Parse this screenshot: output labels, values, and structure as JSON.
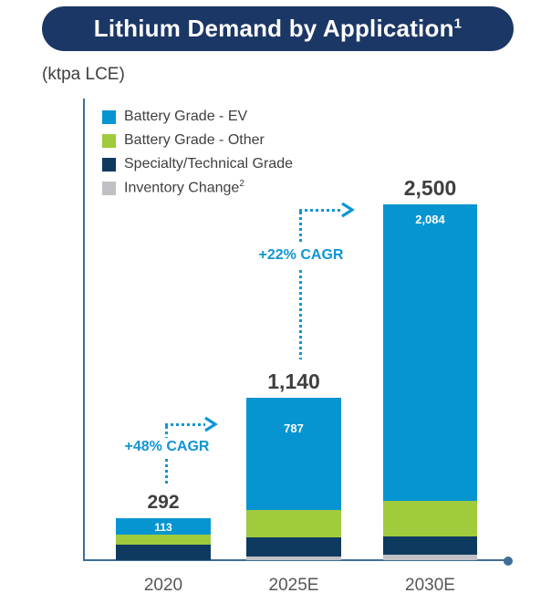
{
  "header": {
    "title": "Lithium Demand by Application",
    "superscript": "1"
  },
  "units_label": "(ktpa LCE)",
  "colors": {
    "banner": "#1b3765",
    "axis": "#3e6e96",
    "annotation_blue": "#1096d5",
    "total_label": "#3f3f3f",
    "tick_label": "#575757"
  },
  "chart_data": {
    "type": "bar",
    "stacked": true,
    "title": "Lithium Demand by Application",
    "ylabel": "(ktpa LCE)",
    "grid": false,
    "legend_position": "top-left",
    "categories": [
      "2020",
      "2025E",
      "2030E"
    ],
    "totals": [
      "292",
      "1,140",
      "2,500"
    ],
    "totals_values": [
      292,
      1140,
      2500
    ],
    "series": [
      {
        "name": "Battery Grade - EV",
        "color": "#0795d2",
        "values": [
          113,
          787,
          2084
        ]
      },
      {
        "name": "Battery Grade - Other",
        "color": "#a0cb3d",
        "values": [
          67,
          190,
          250
        ]
      },
      {
        "name": "Specialty/Technical Grade",
        "color": "#0e3a60",
        "values": [
          112,
          135,
          130
        ]
      },
      {
        "name": "Inventory Change",
        "superscript": "2",
        "color": "#c1c1c5",
        "values": [
          0,
          28,
          36
        ]
      }
    ],
    "segment_labels": [
      "113",
      "787",
      "2,084"
    ],
    "annotations": [
      {
        "text": "+48% CAGR"
      },
      {
        "text": "+22% CAGR"
      }
    ],
    "note": "Values for Battery Grade - EV segments and bar totals are labeled on chart; other segment values estimated from bar proportions; units ktpa LCE"
  }
}
